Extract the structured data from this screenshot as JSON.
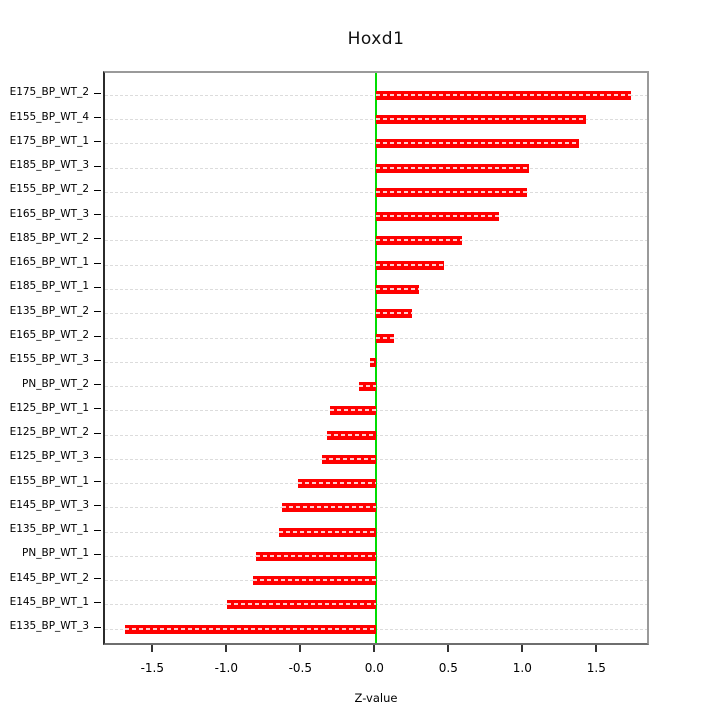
{
  "chart_data": {
    "type": "bar",
    "orientation": "horizontal",
    "title": "Hoxd1",
    "xlabel": "Z-value",
    "categories": [
      "E175_BP_WT_2",
      "E155_BP_WT_4",
      "E175_BP_WT_1",
      "E185_BP_WT_3",
      "E155_BP_WT_2",
      "E165_BP_WT_3",
      "E185_BP_WT_2",
      "E165_BP_WT_1",
      "E185_BP_WT_1",
      "E135_BP_WT_2",
      "E165_BP_WT_2",
      "E155_BP_WT_3",
      "PN_BP_WT_2",
      "E125_BP_WT_1",
      "E125_BP_WT_2",
      "E125_BP_WT_3",
      "E155_BP_WT_1",
      "E145_BP_WT_3",
      "E135_BP_WT_1",
      "PN_BP_WT_1",
      "E145_BP_WT_2",
      "E145_BP_WT_1",
      "E135_BP_WT_3"
    ],
    "values": [
      1.72,
      1.42,
      1.37,
      1.03,
      1.02,
      0.83,
      0.58,
      0.46,
      0.29,
      0.24,
      0.12,
      -0.04,
      -0.12,
      -0.31,
      -0.33,
      -0.37,
      -0.53,
      -0.64,
      -0.66,
      -0.81,
      -0.83,
      -1.01,
      -1.7
    ],
    "x_ticks": [
      -1.5,
      -1.0,
      -0.5,
      0.0,
      0.5,
      1.0,
      1.5
    ],
    "x_tick_labels": [
      "-1.5",
      "-1.0",
      "-0.5",
      "0.0",
      "0.5",
      "1.0",
      "1.5"
    ],
    "xlim": [
      -1.83,
      1.86
    ],
    "grid": true,
    "zero_reference_line": 0,
    "bar_color": "#ff0000",
    "bar_dash_color": "#ffffff",
    "zero_line_color": "#00dd00",
    "grid_color": "#dcdcdc",
    "legend": "none"
  }
}
